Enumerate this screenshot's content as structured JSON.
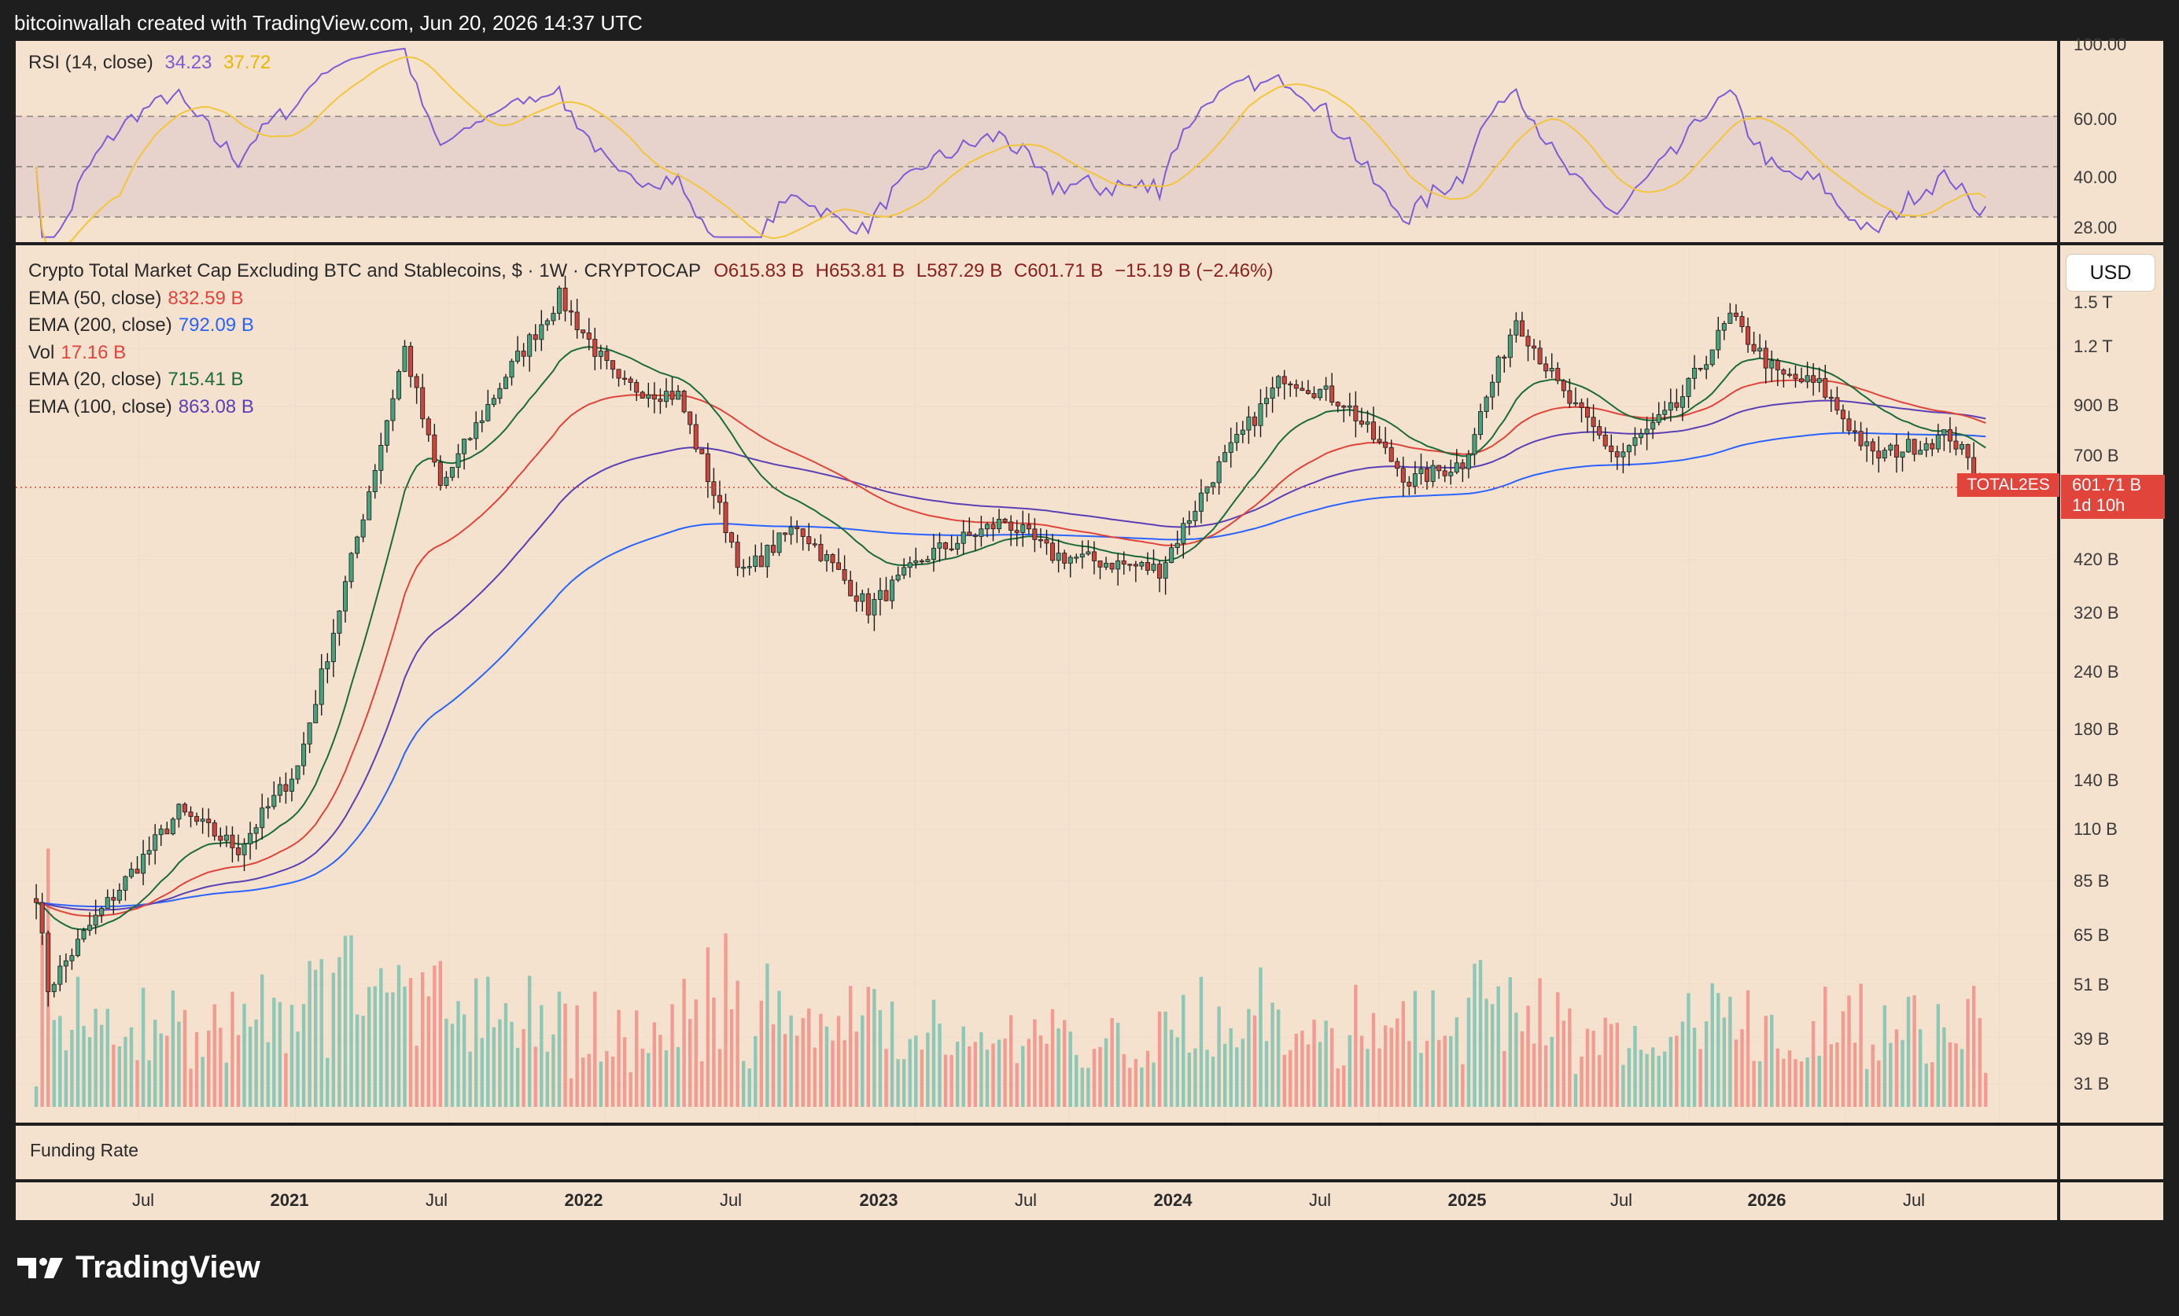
{
  "header": {
    "attribution": "bitcoinwallah created with TradingView.com, Jun 20, 2026 14:37 UTC"
  },
  "rsi_panel": {
    "label": "RSI (14, close)",
    "rsi_value": "34.23",
    "ma_value": "37.72",
    "scale_labels": [
      "100.00",
      "60.00",
      "40.00",
      "28.00"
    ]
  },
  "main_panel": {
    "title": "Crypto Total Market Cap Excluding BTC and Stablecoins, $ · 1W · CRYPTOCAP",
    "ohlc": {
      "o": "O615.83 B",
      "h": "H653.81 B",
      "l": "L587.29 B",
      "c": "C601.71 B",
      "chg": "−15.19 B (−2.46%)"
    },
    "indicators": [
      {
        "label": "EMA (50, close)",
        "value": "832.59 B",
        "color": "#e0443a"
      },
      {
        "label": "EMA (200, close)",
        "value": "792.09 B",
        "color": "#2962ff"
      },
      {
        "label": "Vol",
        "value": "17.16 B",
        "color": "#e0443a"
      },
      {
        "label": "EMA (20, close)",
        "value": "715.41 B",
        "color": "#1b6b3a"
      },
      {
        "label": "EMA (100, close)",
        "value": "863.08 B",
        "color": "#5b3fb5"
      }
    ],
    "currency_button": "USD",
    "price_scale": [
      "1.5 T",
      "1.2 T",
      "900 B",
      "700 B",
      "420 B",
      "320 B",
      "240 B",
      "180 B",
      "140 B",
      "110 B",
      "85 B",
      "65 B",
      "51 B",
      "39 B",
      "31 B"
    ],
    "ticker_tag": "TOTAL2ES",
    "last_price": "601.71 B",
    "countdown": "1d 10h"
  },
  "funding_panel": {
    "label": "Funding Rate"
  },
  "time_axis": [
    "Jul",
    "2021",
    "Jul",
    "2022",
    "Jul",
    "2023",
    "Jul",
    "2024",
    "Jul",
    "2025",
    "Jul",
    "2026",
    "Jul"
  ],
  "brand": {
    "name": "TradingView"
  },
  "colors": {
    "up": "#5fa89a",
    "down": "#e0605a",
    "background": "#f4e2cf",
    "rsi_line": "#7b5cd6",
    "rsi_ma": "#f2c53d"
  },
  "chart_data": {
    "type": "candlestick",
    "title": "Crypto Total Market Cap Excluding BTC and Stablecoins, $ · 1W · CRYPTOCAP",
    "y_scale": "log",
    "ylim": [
      22,
      1650
    ],
    "y_unit": "B",
    "x_range": [
      "2020-03",
      "2026-08"
    ],
    "last_close": 601.71,
    "anchor_path": [
      {
        "date": "2020-03-02",
        "value": 80
      },
      {
        "date": "2020-03-16",
        "value": 50
      },
      {
        "date": "2020-05-04",
        "value": 68
      },
      {
        "date": "2020-08-17",
        "value": 120
      },
      {
        "date": "2020-10-26",
        "value": 100
      },
      {
        "date": "2021-01-04",
        "value": 150
      },
      {
        "date": "2021-02-22",
        "value": 330
      },
      {
        "date": "2021-05-10",
        "value": 1200
      },
      {
        "date": "2021-06-21",
        "value": 600
      },
      {
        "date": "2021-09-06",
        "value": 1050
      },
      {
        "date": "2021-11-08",
        "value": 1550
      },
      {
        "date": "2022-01-17",
        "value": 1000
      },
      {
        "date": "2022-03-28",
        "value": 950
      },
      {
        "date": "2022-06-13",
        "value": 390
      },
      {
        "date": "2022-08-15",
        "value": 500
      },
      {
        "date": "2022-11-07",
        "value": 330
      },
      {
        "date": "2023-01-16",
        "value": 430
      },
      {
        "date": "2023-04-17",
        "value": 510
      },
      {
        "date": "2023-06-12",
        "value": 430
      },
      {
        "date": "2023-10-16",
        "value": 400
      },
      {
        "date": "2023-12-18",
        "value": 640
      },
      {
        "date": "2024-03-11",
        "value": 1050
      },
      {
        "date": "2024-05-20",
        "value": 920
      },
      {
        "date": "2024-08-05",
        "value": 620
      },
      {
        "date": "2024-10-07",
        "value": 680
      },
      {
        "date": "2024-12-09",
        "value": 1400
      },
      {
        "date": "2025-02-03",
        "value": 950
      },
      {
        "date": "2025-04-07",
        "value": 700
      },
      {
        "date": "2025-06-16",
        "value": 900
      },
      {
        "date": "2025-08-18",
        "value": 1400
      },
      {
        "date": "2025-10-13",
        "value": 1050
      },
      {
        "date": "2025-12-01",
        "value": 1000
      },
      {
        "date": "2026-02-02",
        "value": 700
      },
      {
        "date": "2026-05-04",
        "value": 780
      },
      {
        "date": "2026-06-15",
        "value": 601.71
      }
    ],
    "ema_lines": [
      {
        "name": "EMA (20, close)",
        "last": 715.41
      },
      {
        "name": "EMA (50, close)",
        "last": 832.59
      },
      {
        "name": "EMA (100, close)",
        "last": 863.08
      },
      {
        "name": "EMA (200, close)",
        "last": 792.09
      }
    ],
    "rsi": {
      "ylim": [
        20,
        100
      ],
      "bands": [
        70,
        50,
        30
      ],
      "last": 34.23,
      "ma_last": 37.72
    },
    "volume_last": 17.16
  }
}
